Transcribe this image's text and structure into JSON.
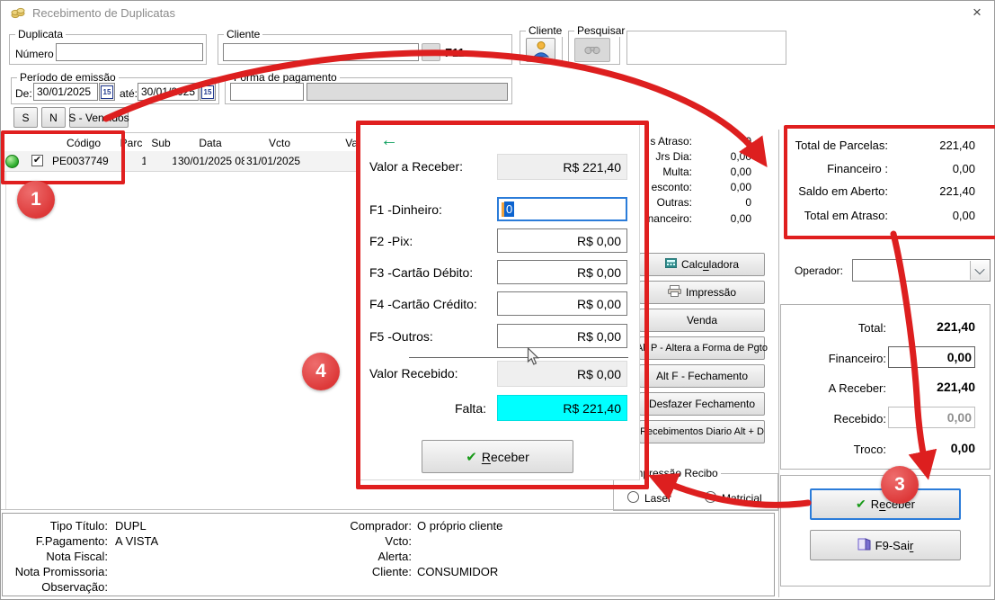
{
  "window": {
    "title": "Recebimento de Duplicatas",
    "close": "×"
  },
  "filters": {
    "duplicata_group": "Duplicata",
    "numero_label": "Número",
    "numero_value": "",
    "cliente_group": "Cliente",
    "cliente_value": "",
    "browse_label": "...",
    "f11_label": "F11",
    "cliente_button_group": "Cliente",
    "pesquisar_group": "Pesquisar",
    "periodo_group": "Período de emissão",
    "de_label": "De:",
    "de_value": "30/01/2025",
    "ate_label": "até:",
    "ate_value": "30/01/2025",
    "calendar_glyph": "15",
    "forma_group": "Forma de pagamento",
    "forma_codigo": "",
    "forma_descricao": "",
    "btn_s": "S",
    "btn_n": "N",
    "btn_vencidos": "S - Vencidos"
  },
  "grid": {
    "headers": {
      "codigo": "Código",
      "parc": "Parc",
      "sub": "Sub",
      "data": "Data",
      "vcto": "Vcto",
      "valor": "Va"
    },
    "row": {
      "codigo": "PE0037749",
      "parc": "1",
      "sub": "1",
      "data": "30/01/2025 08",
      "vcto": "31/01/2025"
    }
  },
  "charges": {
    "rows": [
      {
        "label": "s Atraso:",
        "value": "0"
      },
      {
        "label": "Jrs Dia:",
        "value": "0,00"
      },
      {
        "label": "Multa:",
        "value": "0,00"
      },
      {
        "label": "esconto:",
        "value": "0,00"
      },
      {
        "label": "Outras:",
        "value": "0"
      },
      {
        "label": "nanceiro:",
        "value": "0,00"
      }
    ]
  },
  "summary": {
    "rows": [
      {
        "label": "Total de Parcelas:",
        "value": "221,40"
      },
      {
        "label": "Financeiro :",
        "value": "0,00"
      },
      {
        "label": "Saldo em Aberto:",
        "value": "221,40"
      },
      {
        "label": "Total em Atraso:",
        "value": "0,00"
      }
    ]
  },
  "operador": {
    "label": "Operador:",
    "value": ""
  },
  "totals": {
    "total_label": "Total:",
    "total": "221,40",
    "financeiro_label": "Financeiro:",
    "financeiro": "0,00",
    "areceber_label": "A Receber:",
    "areceber": "221,40",
    "recebido_label": "Recebido:",
    "recebido": "0,00",
    "troco_label": "Troco:",
    "troco": "0,00"
  },
  "actions": {
    "calculadora": {
      "pre": "Calc",
      "accel": "u",
      "post": "ladora"
    },
    "impressao": "Impressão",
    "venda": "Venda",
    "altp": "Alt P - Altera a Forma de Pgto",
    "altf": "Alt F - Fechamento",
    "desfazer": "Desfazer Fechamento",
    "diario": "Recebimentos Diario Alt + D"
  },
  "print_group": {
    "label": "o Impressão Recibo",
    "laser": "Laser",
    "matricial": "Matricial"
  },
  "main_buttons": {
    "receber": {
      "pre": "R",
      "accel": "e",
      "post": "ceber"
    },
    "sair": {
      "pre": "F9-Sai",
      "accel": "r",
      "post": ""
    }
  },
  "payment_panel": {
    "back_icon": "←",
    "valor_label": "Valor a Receber:",
    "valor": "R$ 221,40",
    "fields": [
      {
        "label": "F1 -Dinheiro:",
        "value": "0"
      },
      {
        "label": "F2 -Pix:",
        "value": "R$ 0,00"
      },
      {
        "label": "F3 -Cartão Débito:",
        "value": "R$ 0,00"
      },
      {
        "label": "F4 -Cartão Crédito:",
        "value": "R$ 0,00"
      },
      {
        "label": "F5 -Outros:",
        "value": "R$ 0,00"
      }
    ],
    "recebido_label": "Valor Recebido:",
    "recebido": "R$ 0,00",
    "falta_label": "Falta:",
    "falta": "R$ 221,40",
    "receber_btn": {
      "pre": "",
      "accel": "R",
      "post": "eceber"
    }
  },
  "details": {
    "left": [
      {
        "label": "Tipo Título:",
        "value": "DUPL"
      },
      {
        "label": "F.Pagamento:",
        "value": "A VISTA"
      },
      {
        "label": "Nota Fiscal:",
        "value": ""
      },
      {
        "label": "Nota Promissoria:",
        "value": ""
      },
      {
        "label": "Observação:",
        "value": ""
      }
    ],
    "right": [
      {
        "label": "Comprador:",
        "value": "O próprio cliente"
      },
      {
        "label": "Vcto:",
        "value": ""
      },
      {
        "label": "Alerta:",
        "value": ""
      },
      {
        "label": "Cliente:",
        "value": "CONSUMIDOR"
      }
    ]
  },
  "annotations": {
    "step1": "1",
    "step3": "3",
    "step4": "4"
  },
  "colors": {
    "annotation_red": "#e01f1f",
    "falta_cyan": "#00ffff",
    "focus_blue": "#2b7cd9",
    "check_green": "#189a18"
  }
}
